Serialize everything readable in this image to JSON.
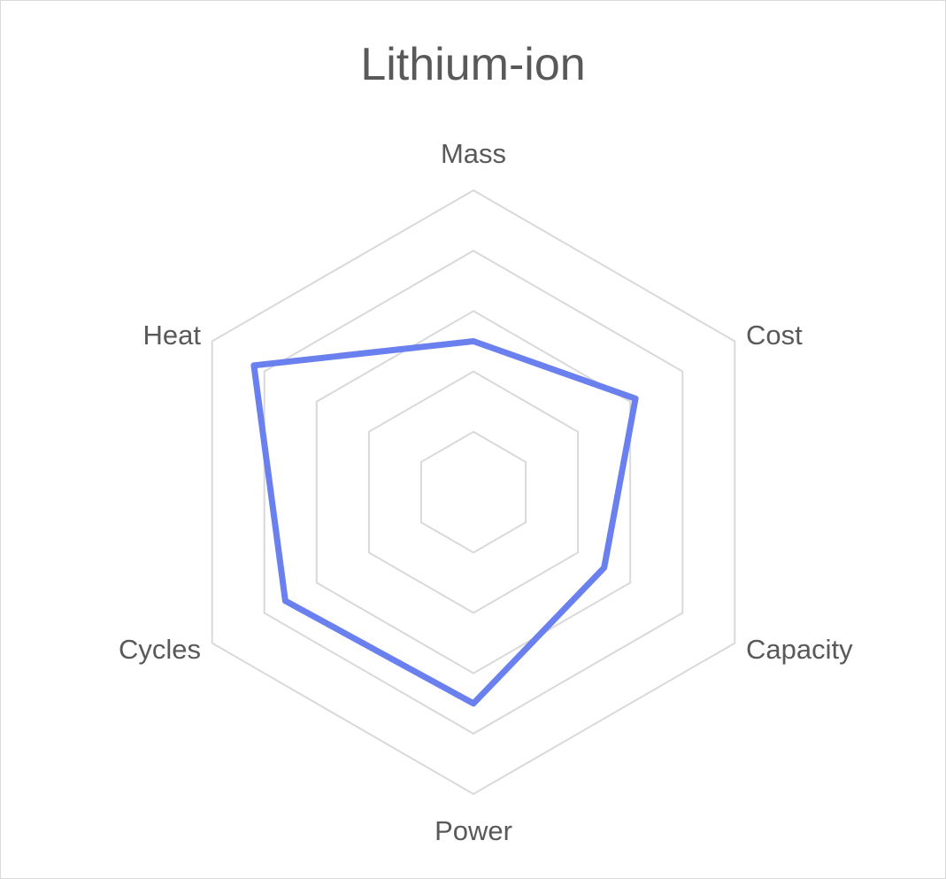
{
  "chart_data": {
    "type": "radar",
    "title": "Lithium-ion",
    "axes": [
      "Mass",
      "Cost",
      "Capacity",
      "Power",
      "Cycles",
      "Heat"
    ],
    "rings": 5,
    "range": [
      0,
      5
    ],
    "grid": true,
    "legend": "none",
    "series": [
      {
        "values": [
          2.5,
          3.1,
          2.5,
          3.5,
          3.6,
          4.2
        ],
        "color": "#6a80ee"
      }
    ]
  }
}
